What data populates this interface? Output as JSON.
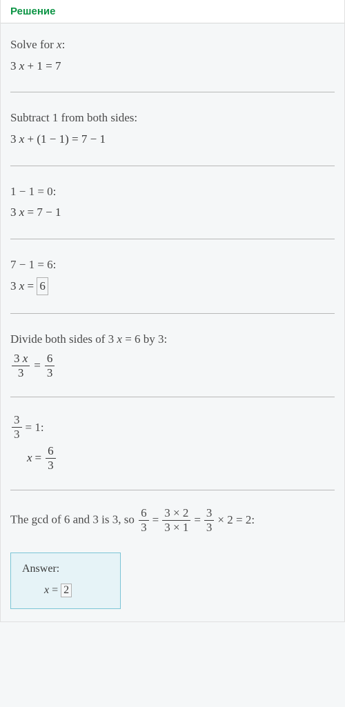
{
  "header": {
    "title": "Решение"
  },
  "steps": {
    "s1": {
      "desc_pre": "Solve for ",
      "var": "x",
      "desc_post": ":",
      "eq_pre": "3 ",
      "eq_post": " + 1 = 7"
    },
    "s2": {
      "desc": "Subtract 1 from both sides:",
      "eq_pre": "3 ",
      "eq_post": " + (1 − 1) = 7 − 1"
    },
    "s3": {
      "desc": "1 − 1 = 0:",
      "eq_pre": "3 ",
      "eq_post": " = 7 − 1"
    },
    "s4": {
      "desc": "7 − 1 = 6:",
      "eq_pre": "3 ",
      "eq_mid": " = ",
      "boxed": "6"
    },
    "s5": {
      "desc_pre": "Divide both sides of 3 ",
      "desc_var": "x",
      "desc_post": " = 6 by 3:",
      "lhs_num_pre": "3 ",
      "lhs_num_var": "x",
      "lhs_den": "3",
      "eq": "=",
      "rhs_num": "6",
      "rhs_den": "3"
    },
    "s6": {
      "desc_num": "3",
      "desc_den": "3",
      "desc_post": " = 1:",
      "lhs_var": "x",
      "eq": " = ",
      "rhs_num": "6",
      "rhs_den": "3"
    },
    "s7": {
      "t1": "The gcd of 6 and 3 is 3, so ",
      "f1_num": "6",
      "f1_den": "3",
      "eq1": " = ",
      "f2_num": "3 × 2",
      "f2_den": "3 × 1",
      "eq2": " = ",
      "f3_num": "3",
      "f3_den": "3",
      "t2": " × 2 = 2:"
    }
  },
  "answer": {
    "label": "Answer:",
    "var": "x",
    "eq": " = ",
    "boxed": "2"
  }
}
